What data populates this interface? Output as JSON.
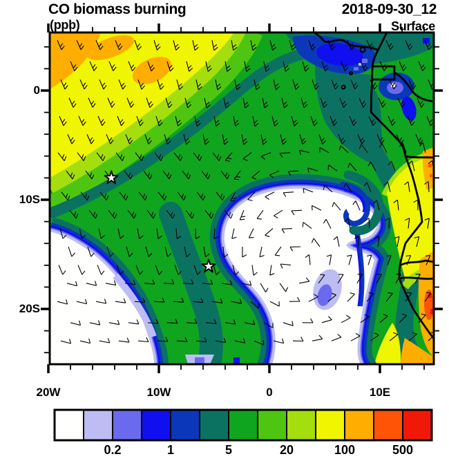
{
  "header": {
    "title": "CO biomass burning",
    "datetime": "2018-09-30_12",
    "units": "(ppb)",
    "level": "Surface"
  },
  "axes": {
    "lat_labels": [
      "0",
      "10S",
      "20S"
    ],
    "lon_labels": [
      "20W",
      "10W",
      "0",
      "10E"
    ]
  },
  "colorbar": {
    "tick_labels": [
      "0.2",
      "1",
      "5",
      "20",
      "100",
      "500"
    ],
    "cell_colors": [
      "#FFFFFE",
      "#BDBDF4",
      "#6A6AEE",
      "#0F0FF0",
      "#0A38B8",
      "#0B7262",
      "#10A51F",
      "#4EC611",
      "#A4DE0E",
      "#F0F500",
      "#FFAE00",
      "#FF5305",
      "#F21807"
    ]
  },
  "chart_data": {
    "type": "heatmap",
    "title": "CO biomass burning",
    "units": "ppb",
    "valid_time": "2018-09-30_12",
    "level": "Surface",
    "lon_range": [
      -20,
      15
    ],
    "lat_range": [
      -25,
      5
    ],
    "lon_tick_labels": [
      "20W",
      "10W",
      "0",
      "10E"
    ],
    "lat_tick_labels": [
      "0",
      "10S",
      "20S"
    ],
    "minor_tick_interval_deg": 2,
    "contour_levels": [
      0.1,
      0.2,
      0.5,
      1,
      2,
      5,
      10,
      20,
      50,
      100,
      200,
      500
    ],
    "colorbar_labeled_levels": [
      0.2,
      1,
      5,
      20,
      100,
      500
    ],
    "palette": [
      "#FFFFFE",
      "#BDBDF4",
      "#6A6AEE",
      "#0F0FF0",
      "#0A38B8",
      "#0B7262",
      "#10A51F",
      "#4EC611",
      "#A4DE0E",
      "#F0F500",
      "#FFAE00",
      "#FF5305",
      "#F21807"
    ],
    "overlays": [
      "wind barbs",
      "coastline",
      "country borders"
    ],
    "markers": [
      {
        "symbol": "star",
        "lon": -14.3,
        "lat": -8.0
      },
      {
        "symbol": "star",
        "lon": -5.5,
        "lat": -16.1
      }
    ],
    "regions": [
      {
        "area": "NW quadrant offshore plume",
        "value_ppb": "20-100 (yellow), 100-200 orange patches at NW corner"
      },
      {
        "area": "plume gradient band sweeping SW-NE toward Gulf of Guinea coast",
        "value_ppb": "1-20 (green shades)"
      },
      {
        "area": "central South Atlantic gyre and SW corner",
        "value_ppb": "< 0.1 (white, clear air)"
      },
      {
        "area": "anticyclonic hook curling into gyre near 7E,12S",
        "value_ppb": "0.2-2 (blue fringe)"
      },
      {
        "area": "Gulf of Guinea coastal waters near Niger delta",
        "value_ppb": "0.2-1 (blue patches)"
      },
      {
        "area": "Gabon/Congo coast band",
        "value_ppb": "2-10 (teal/green)"
      },
      {
        "area": "inland Angola toward E edge",
        "value_ppb": "100-500+ (yellow-orange-red)"
      }
    ]
  }
}
